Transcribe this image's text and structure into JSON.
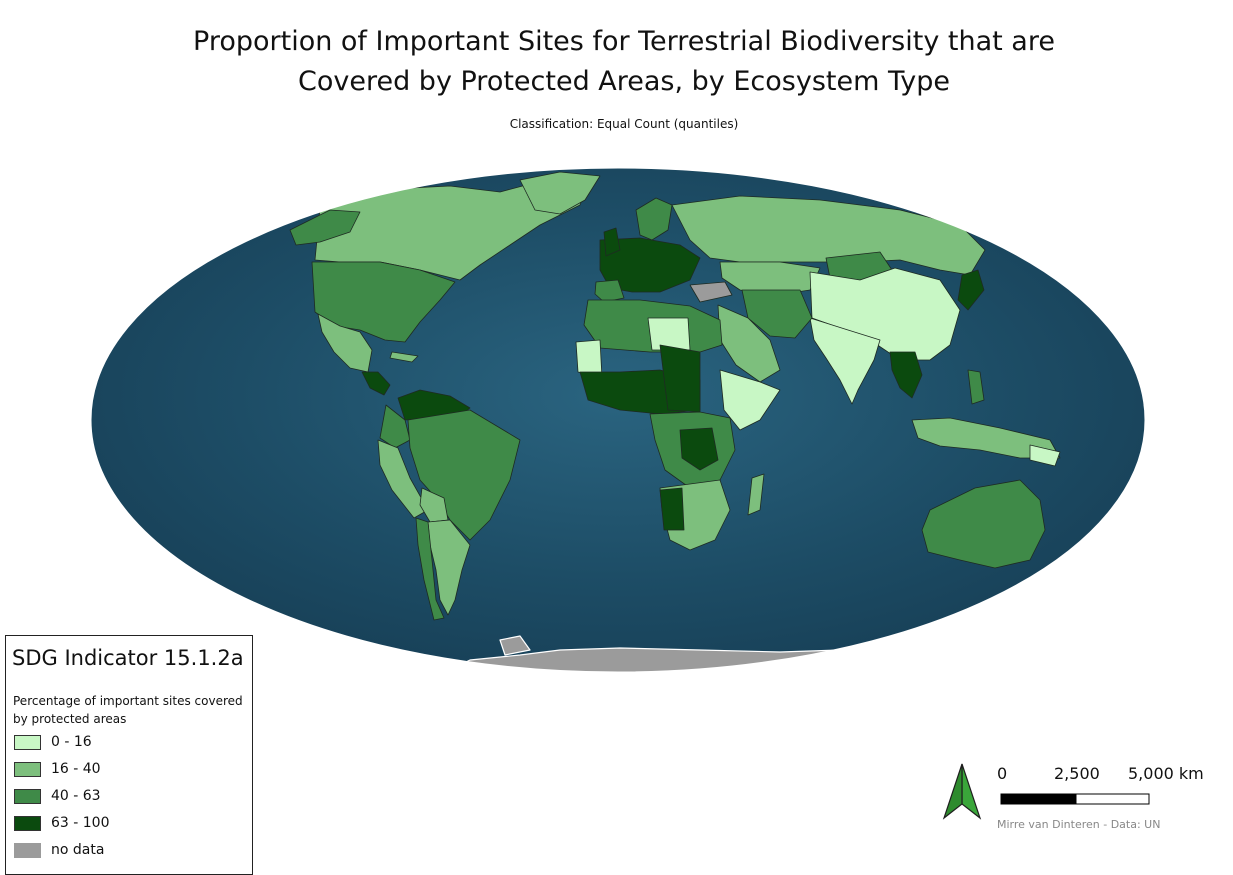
{
  "title_line1": "Proportion of Important Sites for Terrestrial Biodiversity that are",
  "title_line2": "Covered by Protected Areas, by Ecosystem Type",
  "subtitle": "Classification: Equal Count (quantiles)",
  "legend": {
    "title": "SDG Indicator 15.1.2a",
    "subtitle": "Percentage of important sites covered by protected areas",
    "items": [
      {
        "label": "0 - 16",
        "color": "#c8f7c5"
      },
      {
        "label": "16 - 40",
        "color": "#7dbf7d"
      },
      {
        "label": "40 - 63",
        "color": "#3f8a48"
      },
      {
        "label": "63 - 100",
        "color": "#0b4a0e"
      },
      {
        "label": "no data",
        "color": "#9b9b9b"
      }
    ]
  },
  "scale_bar": {
    "labels": [
      "0",
      "2,500",
      "5,000 km"
    ]
  },
  "credit": "Mirre van Dinteren - Data: UN",
  "colors": {
    "ocean": "#1f4f6b",
    "ocean_light": "#2e6f86",
    "north_arrow": "#3aa63a"
  }
}
